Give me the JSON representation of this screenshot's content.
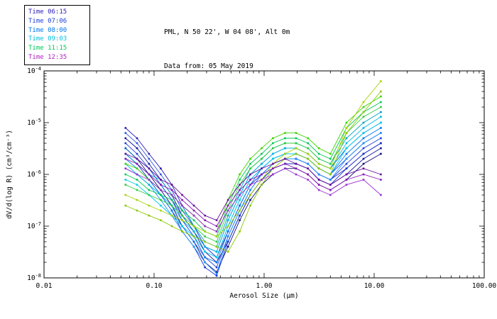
{
  "header": {
    "title_line1": "PML, N 50 22', W 04 08', Alt 0m",
    "title_line2": "Data from: 05 May 2019"
  },
  "legend": {
    "items": [
      {
        "label": "Time 06:15",
        "color": "#2a1cb4"
      },
      {
        "label": "Time 07:06",
        "color": "#1f3fd9"
      },
      {
        "label": "Time 08:00",
        "color": "#0077ee"
      },
      {
        "label": "Time 09:03",
        "color": "#00c0e0"
      },
      {
        "label": "Time 11:15",
        "color": "#00c853"
      },
      {
        "label": "Time 12:35",
        "color": "#b01ec0"
      }
    ]
  },
  "chart_data": {
    "type": "line",
    "title": "PML, N 50 22', W 04 08', Alt 0m",
    "subtitle": "Data from: 05 May 2019",
    "xlabel": "Aerosol Size (μm)",
    "ylabel": "dV/d(log R) (cm³/cm⁻³)",
    "xscale": "log",
    "yscale": "log",
    "xlim": [
      0.01,
      100.0
    ],
    "ylim": [
      1e-08,
      0.0001
    ],
    "x_ticks": [
      0.01,
      0.1,
      1.0,
      10.0,
      100.0
    ],
    "x_tick_labels": [
      "0.01",
      "0.10",
      "1.00",
      "10.00",
      "100.00"
    ],
    "y_tick_exponents": [
      -8,
      -7,
      -6,
      -5,
      -4
    ],
    "grid": false,
    "legend_position": "top-left",
    "x": [
      0.055,
      0.07,
      0.09,
      0.115,
      0.145,
      0.18,
      0.23,
      0.29,
      0.37,
      0.47,
      0.6,
      0.75,
      0.95,
      1.2,
      1.55,
      1.95,
      2.5,
      3.15,
      4.0,
      5.6,
      8.0,
      11.5
    ],
    "series": [
      {
        "name": "06:15 run 1",
        "time": "06:15",
        "color": "#16169c",
        "values": [
          5e-06,
          3.2e-06,
          1.6e-06,
          7.9e-07,
          4e-07,
          1.6e-07,
          7.9e-08,
          3.2e-08,
          2e-08,
          5e-08,
          1.6e-07,
          4e-07,
          7.9e-07,
          1.3e-06,
          1.6e-06,
          1.6e-06,
          1.3e-06,
          7.9e-07,
          6.3e-07,
          1e-06,
          2e-06,
          3.2e-06
        ]
      },
      {
        "name": "06:15 run 2",
        "time": "06:15",
        "color": "#2a1cb4",
        "values": [
          7.9e-06,
          5e-06,
          2.5e-06,
          1.3e-06,
          6.3e-07,
          2.5e-07,
          1e-07,
          4e-08,
          2.5e-08,
          7.9e-08,
          2.5e-07,
          6.3e-07,
          1e-06,
          1.6e-06,
          2e-06,
          2e-06,
          1.6e-06,
          1e-06,
          7.9e-07,
          1.3e-06,
          2.5e-06,
          4e-06
        ]
      },
      {
        "name": "06:15 run 3",
        "time": "06:15",
        "color": "#0d0d7a",
        "values": [
          3.2e-06,
          2e-06,
          1e-06,
          5e-07,
          2.5e-07,
          1e-07,
          5e-08,
          2e-08,
          1.3e-08,
          4e-08,
          1.3e-07,
          3.2e-07,
          6.3e-07,
          1e-06,
          1.3e-06,
          1.3e-06,
          1e-06,
          6.3e-07,
          5e-07,
          7.9e-07,
          1.6e-06,
          2.5e-06
        ]
      },
      {
        "name": "07:06 run 1",
        "time": "07:06",
        "color": "#1f3fd9",
        "values": [
          4e-06,
          2.5e-06,
          1.3e-06,
          6.3e-07,
          3.2e-07,
          1.3e-07,
          6.3e-08,
          2.5e-08,
          1.6e-08,
          6.3e-08,
          2e-07,
          5e-07,
          1e-06,
          1.6e-06,
          2e-06,
          2e-06,
          1.6e-06,
          1e-06,
          7.9e-07,
          1.6e-06,
          3.2e-06,
          5e-06
        ]
      },
      {
        "name": "07:06 run 2",
        "time": "07:06",
        "color": "#2b55e6",
        "values": [
          6.3e-06,
          4e-06,
          2e-06,
          1e-06,
          5e-07,
          2e-07,
          1e-07,
          4e-08,
          2.5e-08,
          1e-07,
          3.2e-07,
          7.9e-07,
          1.3e-06,
          2e-06,
          2.5e-06,
          2.5e-06,
          2e-06,
          1.3e-06,
          1e-06,
          2e-06,
          4e-06,
          6.3e-06
        ]
      },
      {
        "name": "07:06 run 3",
        "time": "07:06",
        "color": "#1433cc",
        "values": [
          2.5e-06,
          1.6e-06,
          7.9e-07,
          4e-07,
          2e-07,
          7.9e-08,
          4e-08,
          1.6e-08,
          1.1e-08,
          5e-08,
          1.6e-07,
          4e-07,
          7.9e-07,
          1.3e-06,
          1.6e-06,
          1.6e-06,
          1.3e-06,
          7.9e-07,
          6.3e-07,
          1.3e-06,
          2.5e-06,
          4e-06
        ]
      },
      {
        "name": "08:00 run 1",
        "time": "08:00",
        "color": "#0077ee",
        "values": [
          2e-06,
          1.3e-06,
          7.9e-07,
          4e-07,
          2e-07,
          1e-07,
          5e-08,
          2.5e-08,
          2e-08,
          7.9e-08,
          2.5e-07,
          6.3e-07,
          1.3e-06,
          2e-06,
          2.5e-06,
          2.5e-06,
          2e-06,
          1.3e-06,
          1e-06,
          2.5e-06,
          5e-06,
          7.9e-06
        ]
      },
      {
        "name": "08:00 run 2",
        "time": "08:00",
        "color": "#1e90ff",
        "values": [
          1.3e-06,
          1e-06,
          6.3e-07,
          3.2e-07,
          1.6e-07,
          7.9e-08,
          4e-08,
          2e-08,
          1.2e-08,
          6.3e-08,
          2e-07,
          5e-07,
          1e-06,
          1.6e-06,
          2e-06,
          2e-06,
          1.6e-06,
          1e-06,
          7.9e-07,
          2e-06,
          4e-06,
          6.3e-06
        ]
      },
      {
        "name": "08:00 run 3",
        "time": "08:00",
        "color": "#0066cc",
        "values": [
          3.2e-06,
          2e-06,
          1.3e-06,
          6.3e-07,
          3.2e-07,
          1.6e-07,
          7.9e-08,
          4e-08,
          3.2e-08,
          1.3e-07,
          4e-07,
          1e-06,
          1.6e-06,
          2.5e-06,
          3.2e-06,
          3.2e-06,
          2.5e-06,
          1.6e-06,
          1.3e-06,
          3.2e-06,
          6.3e-06,
          1e-05
        ]
      },
      {
        "name": "09:03 run 1",
        "time": "09:03",
        "color": "#00b8e0",
        "values": [
          1.6e-06,
          1e-06,
          6.3e-07,
          4e-07,
          2.5e-07,
          1.3e-07,
          7.9e-08,
          4e-08,
          3.2e-08,
          1.3e-07,
          4e-07,
          1e-06,
          1.6e-06,
          2.5e-06,
          3.2e-06,
          3.2e-06,
          2.5e-06,
          1.6e-06,
          1.3e-06,
          4e-06,
          7.9e-06,
          1.3e-05
        ]
      },
      {
        "name": "09:03 run 2",
        "time": "09:03",
        "color": "#00cdeb",
        "values": [
          7.9e-07,
          6.3e-07,
          4e-07,
          2.5e-07,
          1.6e-07,
          1e-07,
          6.3e-08,
          3.2e-08,
          2.5e-08,
          1e-07,
          3.2e-07,
          7.9e-07,
          1.3e-06,
          2e-06,
          2.5e-06,
          2.5e-06,
          2e-06,
          1.3e-06,
          1e-06,
          3.2e-06,
          6.3e-06,
          1e-05
        ]
      },
      {
        "name": "09:03 run 3",
        "time": "09:03",
        "color": "#00a0c8",
        "values": [
          2.5e-06,
          1.6e-06,
          1e-06,
          7.9e-07,
          4e-07,
          2.5e-07,
          1e-07,
          5e-08,
          4e-08,
          1.6e-07,
          5e-07,
          1.3e-06,
          2e-06,
          3.2e-06,
          4e-06,
          4e-06,
          3.2e-06,
          2e-06,
          1.6e-06,
          5e-06,
          1e-05,
          1.6e-05
        ]
      },
      {
        "name": "11:15 run 1",
        "time": "11:15",
        "color": "#00c853",
        "values": [
          1e-06,
          7.9e-07,
          5e-07,
          4e-07,
          3.2e-07,
          2e-07,
          1.3e-07,
          7.9e-08,
          6.3e-08,
          2.5e-07,
          7.9e-07,
          1.6e-06,
          2.5e-06,
          4e-06,
          5e-06,
          5e-06,
          4e-06,
          2.5e-06,
          2e-06,
          7.9e-06,
          1.6e-05,
          2.5e-05
        ]
      },
      {
        "name": "11:15 run 2",
        "time": "11:15",
        "color": "#2ecc40",
        "values": [
          6.3e-07,
          5e-07,
          4e-07,
          3.2e-07,
          2.5e-07,
          1.6e-07,
          1e-07,
          6.3e-08,
          5e-08,
          2e-07,
          6.3e-07,
          1.3e-06,
          2e-06,
          3.2e-06,
          4e-06,
          4e-06,
          3.2e-06,
          2e-06,
          1.6e-06,
          6.3e-06,
          1.3e-05,
          2e-05
        ]
      },
      {
        "name": "11:15 run 3",
        "time": "11:15",
        "color": "#3dd400",
        "values": [
          1.6e-06,
          1.3e-06,
          7.9e-07,
          5e-07,
          4e-07,
          2.5e-07,
          1.6e-07,
          1e-07,
          7.9e-08,
          3.2e-07,
          1e-06,
          2e-06,
          3.2e-06,
          5e-06,
          6.3e-06,
          6.3e-06,
          5e-06,
          3.2e-06,
          2.5e-06,
          1e-05,
          2e-05,
          3.2e-05
        ]
      },
      {
        "name": "11:15 run 4",
        "time": "11:15",
        "color": "#a4d400",
        "values": [
          4e-07,
          3.2e-07,
          2.5e-07,
          2e-07,
          1.6e-07,
          1.3e-07,
          1e-07,
          7.9e-08,
          6.3e-08,
          1e-07,
          2e-07,
          4e-07,
          7.9e-07,
          1.6e-06,
          2.5e-06,
          3.2e-06,
          2.5e-06,
          1.6e-06,
          1.3e-06,
          7.9e-06,
          2.5e-05,
          6.3e-05
        ]
      },
      {
        "name": "11:15 run 5",
        "time": "11:15",
        "color": "#8cc800",
        "values": [
          2.5e-07,
          2e-07,
          1.6e-07,
          1.3e-07,
          1e-07,
          7.9e-08,
          6.3e-08,
          5e-08,
          4e-08,
          3.2e-08,
          7.9e-08,
          2.5e-07,
          6.3e-07,
          1.3e-06,
          2e-06,
          2.5e-06,
          2e-06,
          1.3e-06,
          1e-06,
          6.3e-06,
          1.6e-05,
          4e-05
        ]
      },
      {
        "name": "12:35 run 1",
        "time": "12:35",
        "color": "#8a17b8",
        "values": [
          2e-06,
          1.6e-06,
          1e-06,
          6.3e-07,
          5e-07,
          3.2e-07,
          2e-07,
          1.3e-07,
          1e-07,
          2.5e-07,
          5e-07,
          7.9e-07,
          1e-06,
          1.3e-06,
          1.6e-06,
          1.3e-06,
          1e-06,
          6.3e-07,
          5e-07,
          7.9e-07,
          1e-06,
          7.9e-07
        ]
      },
      {
        "name": "12:35 run 2",
        "time": "12:35",
        "color": "#9b30d0",
        "values": [
          1.3e-06,
          1e-06,
          7.9e-07,
          5e-07,
          4e-07,
          2.5e-07,
          1.6e-07,
          1e-07,
          7.9e-08,
          2e-07,
          4e-07,
          6.3e-07,
          7.9e-07,
          1e-06,
          1.3e-06,
          1e-06,
          7.9e-07,
          5e-07,
          4e-07,
          6.3e-07,
          7.9e-07,
          4e-07
        ]
      },
      {
        "name": "12:35 run 3",
        "time": "12:35",
        "color": "#6a0f9e",
        "values": [
          2.5e-06,
          2e-06,
          1.3e-06,
          7.9e-07,
          6.3e-07,
          4e-07,
          2.5e-07,
          1.6e-07,
          1.3e-07,
          3.2e-07,
          6.3e-07,
          1e-06,
          1.3e-06,
          1.6e-06,
          2e-06,
          1.6e-06,
          1.3e-06,
          7.9e-07,
          6.3e-07,
          1e-06,
          1.3e-06,
          1e-06
        ]
      }
    ]
  }
}
